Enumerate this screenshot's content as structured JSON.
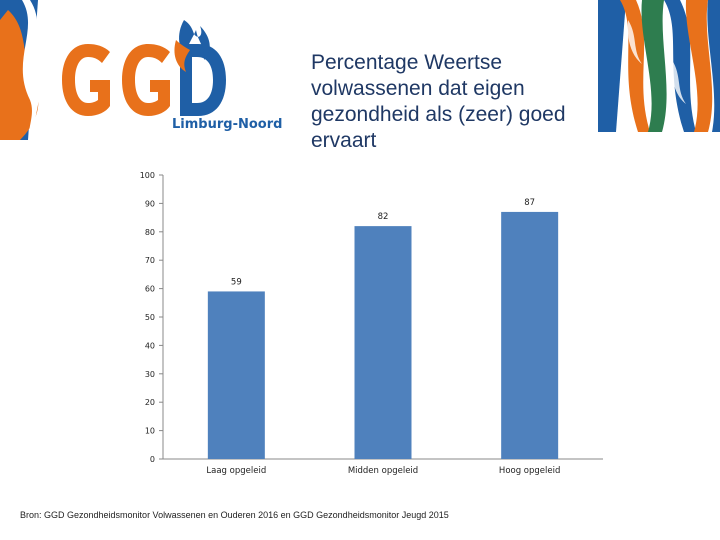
{
  "logo": {
    "brand": "GGD",
    "subtitle": "Limburg-Noord"
  },
  "title": "Percentage Weertse volwassenen dat eigen gezondheid als (zeer) goed ervaart",
  "source": "Bron: GGD Gezondheidsmonitor Volwassenen en Ouderen 2016 en GGD Gezondheidsmonitor Jeugd 2015",
  "colors": {
    "bar": "#4f81bd",
    "orange": "#e8711b",
    "blue": "#1f5fa6",
    "green": "#2e7d4f"
  },
  "chart_data": {
    "type": "bar",
    "categories": [
      "Laag opgeleid",
      "Midden opgeleid",
      "Hoog opgeleid"
    ],
    "values": [
      59,
      82,
      87
    ],
    "data_labels": [
      "59",
      "82",
      "87"
    ],
    "title": "Percentage Weertse volwassenen dat eigen gezondheid als (zeer) goed ervaart",
    "xlabel": "",
    "ylabel": "",
    "ylim": [
      0,
      100
    ],
    "yticks": [
      "0",
      "10",
      "20",
      "30",
      "40",
      "50",
      "60",
      "70",
      "80",
      "90",
      "100"
    ],
    "grid": false,
    "legend": "none"
  }
}
